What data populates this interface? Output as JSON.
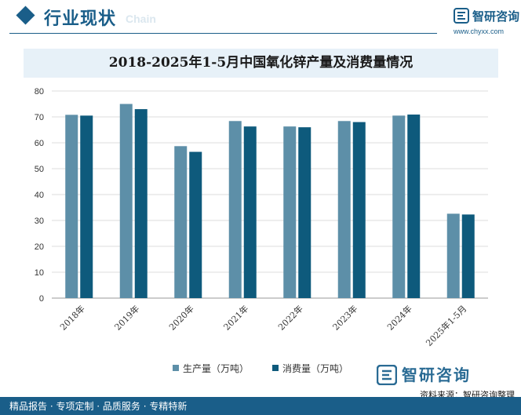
{
  "header": {
    "section_title": "行业现状",
    "section_subtitle": "Chain",
    "brand_name": "智研咨询",
    "brand_url": "www.chyxx.com"
  },
  "footer": {
    "services": "精品报告 · 专项定制 · 品质服务 · 专精特新",
    "source": "资料来源：智研咨询整理",
    "brand_name": "智研咨询"
  },
  "colors": {
    "brand": "#1a5e89",
    "series_production": "#5d8fa8",
    "series_consumption": "#0e5a7c",
    "title_band": "#e7f1f8"
  },
  "chart_data": {
    "type": "bar",
    "title": "2018-2025年1-5月中国氧化锌产量及消费量情况",
    "xlabel": "",
    "ylabel": "",
    "categories": [
      "2018年",
      "2019年",
      "2020年",
      "2021年",
      "2022年",
      "2023年",
      "2024年",
      "2025年1-5月"
    ],
    "series": [
      {
        "name": "生产量（万吨）",
        "values": [
          70.8,
          75.0,
          58.7,
          68.4,
          66.3,
          68.4,
          70.5,
          32.6
        ]
      },
      {
        "name": "消费量（万吨）",
        "values": [
          70.5,
          73.0,
          56.5,
          66.3,
          66.0,
          68.0,
          70.9,
          32.3
        ]
      }
    ],
    "ylim": [
      0,
      80
    ],
    "yticks": [
      0,
      10,
      20,
      30,
      40,
      50,
      60,
      70,
      80
    ],
    "grid": true,
    "legend_position": "bottom"
  }
}
